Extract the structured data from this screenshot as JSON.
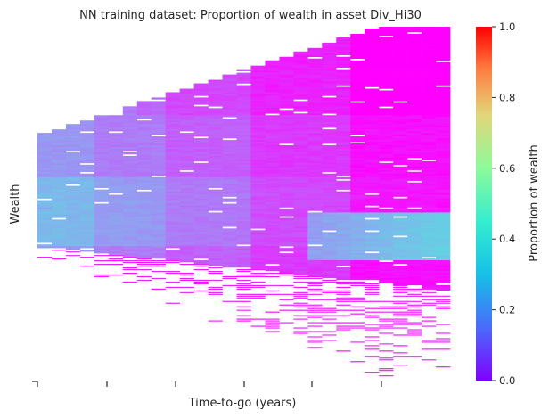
{
  "chart_data": {
    "type": "heatmap",
    "title": "NN training dataset: Proportion of wealth in asset Div_Hi30",
    "xlabel": "Time-to-go (years)",
    "ylabel": "Wealth",
    "x_tick_labels": [],
    "y_tick_labels": [],
    "colorbar": {
      "label": "Proportion of wealth",
      "colormap": "rainbow",
      "range": [
        0.0,
        1.0
      ],
      "ticks": [
        0.0,
        0.2,
        0.4,
        0.6,
        0.8,
        1.0
      ],
      "tick_labels": [
        "0.0",
        "0.2",
        "0.4",
        "0.6",
        "0.8",
        "1.0"
      ],
      "colors": [
        "#8000ff",
        "#2adcdc",
        "#d4dd80",
        "#ff0000"
      ]
    },
    "grid": false,
    "n_time_columns": 29,
    "n_wealth_bins": 200,
    "proportion_by_time_column": {
      "columns_0_to_3": 0.2,
      "columns_4_to_8": 0.16,
      "columns_9_to_14": 0.12,
      "columns_15_to_21": 0.07,
      "columns_22_to_28": 0.02,
      "low_wealth_band_late_columns": 0.3
    }
  }
}
